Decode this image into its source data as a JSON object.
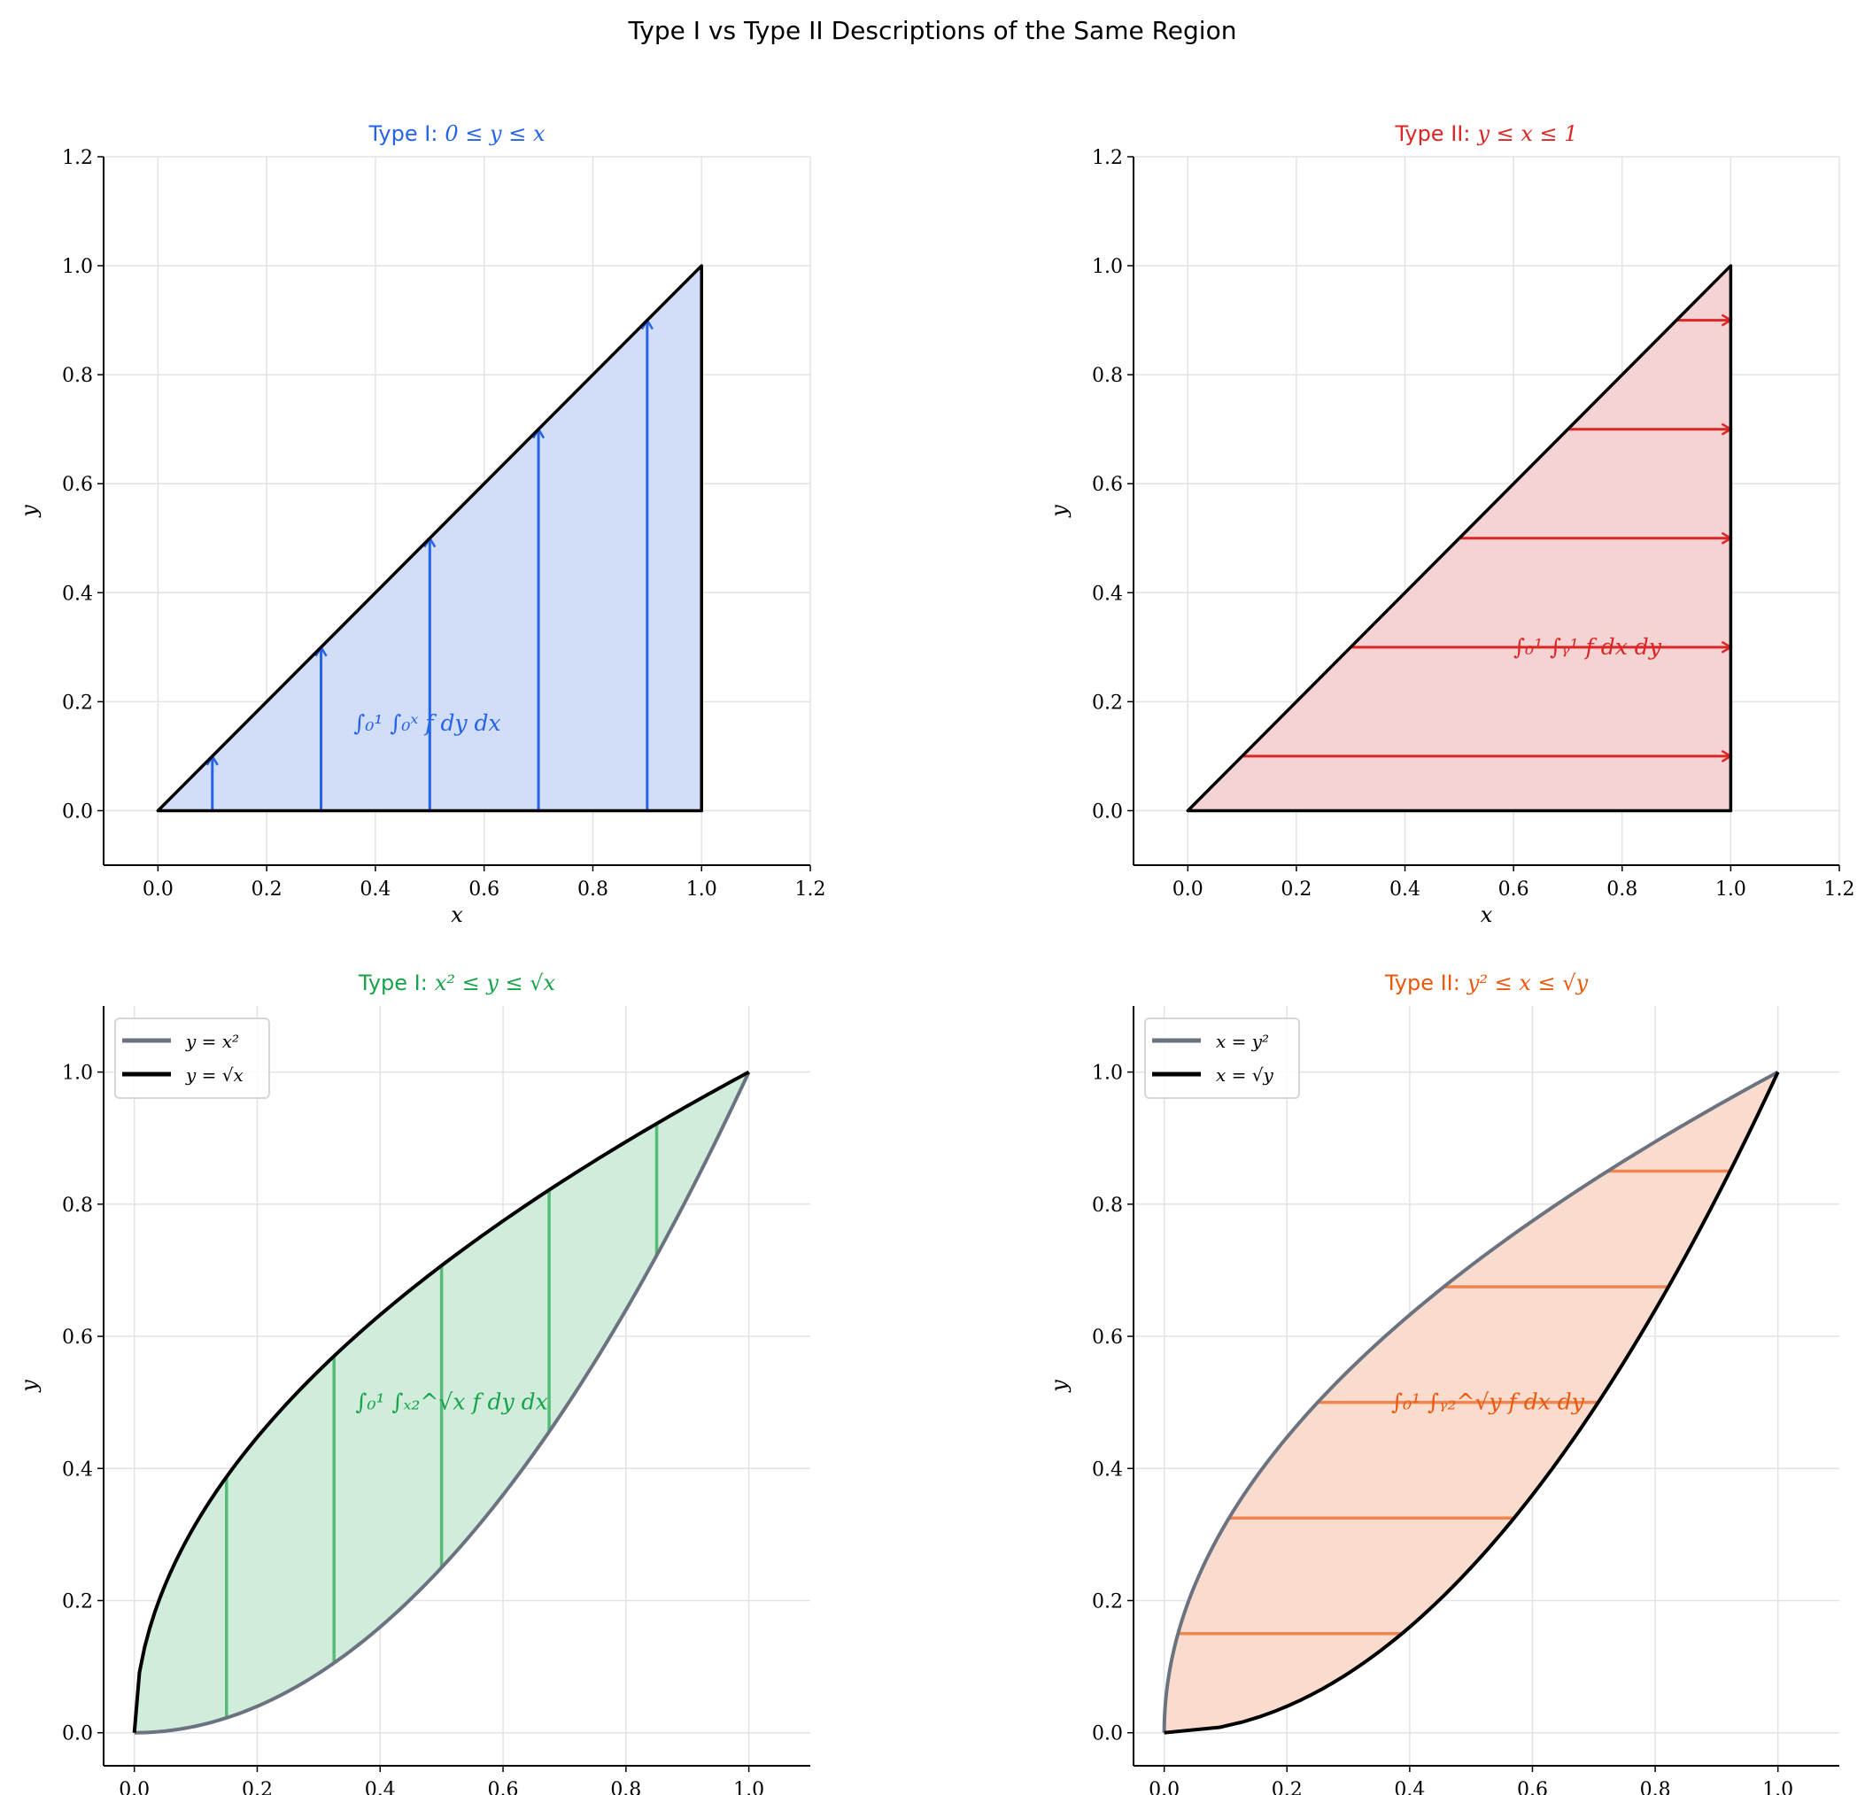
{
  "title": "Type I vs Type II Descriptions of the Same Region",
  "chart_data": [
    {
      "type": "area",
      "panel": "top-left",
      "title_prefix": "Type I:",
      "title_math": "0 ≤ y ≤ x",
      "color": "#2563eb",
      "fill": "#d2ddf8",
      "xlabel": "x",
      "ylabel": "y",
      "xlim": [
        -0.1,
        1.2
      ],
      "ylim": [
        -0.1,
        1.2
      ],
      "xticks": [
        "0.0",
        "0.2",
        "0.4",
        "0.6",
        "0.8",
        "1.0",
        "1.2"
      ],
      "yticks": [
        "0.0",
        "0.2",
        "0.4",
        "0.6",
        "0.8",
        "1.0",
        "1.2"
      ],
      "grid": true,
      "region": {
        "vertices": [
          [
            0,
            0
          ],
          [
            1,
            0
          ],
          [
            1,
            1
          ]
        ]
      },
      "slices": {
        "direction": "vertical",
        "arrows": true,
        "x": [
          0.1,
          0.3,
          0.5,
          0.7,
          0.9
        ],
        "from": "y = 0",
        "to": "y = x"
      },
      "annotation": {
        "text": "∫₀¹ ∫₀ˣ f dy dx",
        "x": 0.36,
        "y": 0.16
      }
    },
    {
      "type": "area",
      "panel": "top-right",
      "title_prefix": "Type II:",
      "title_math": "y ≤ x ≤ 1",
      "color": "#dc2626",
      "fill": "#f5d3d3",
      "xlabel": "x",
      "ylabel": "y",
      "xlim": [
        -0.1,
        1.2
      ],
      "ylim": [
        -0.1,
        1.2
      ],
      "xticks": [
        "0.0",
        "0.2",
        "0.4",
        "0.6",
        "0.8",
        "1.0",
        "1.2"
      ],
      "yticks": [
        "0.0",
        "0.2",
        "0.4",
        "0.6",
        "0.8",
        "1.0",
        "1.2"
      ],
      "grid": true,
      "region": {
        "vertices": [
          [
            0,
            0
          ],
          [
            1,
            0
          ],
          [
            1,
            1
          ]
        ]
      },
      "slices": {
        "direction": "horizontal",
        "arrows": true,
        "y": [
          0.1,
          0.3,
          0.5,
          0.7,
          0.9
        ],
        "from": "x = y",
        "to": "x = 1"
      },
      "annotation": {
        "text": "∫₀¹ ∫ᵧ¹ f dx dy",
        "x": 0.6,
        "y": 0.3
      }
    },
    {
      "type": "area",
      "panel": "bottom-left",
      "title_prefix": "Type I:",
      "title_math": "x² ≤ y ≤ √x",
      "color": "#16a34a",
      "line_color": "#55bb77",
      "fill": "#d0ecdb",
      "xlabel": "x",
      "ylabel": "y",
      "xlim": [
        -0.05,
        1.1
      ],
      "ylim": [
        -0.05,
        1.1
      ],
      "xticks": [
        "0.0",
        "0.2",
        "0.4",
        "0.6",
        "0.8",
        "1.0"
      ],
      "yticks": [
        "0.0",
        "0.2",
        "0.4",
        "0.6",
        "0.8",
        "1.0"
      ],
      "grid": true,
      "series": [
        {
          "name": "y = x²",
          "color": "#6b7280",
          "curve": "y=x^2"
        },
        {
          "name": "y = √x",
          "color": "#000000",
          "curve": "y=sqrt(x)"
        }
      ],
      "legend": "top-left",
      "slices": {
        "direction": "vertical",
        "arrows": false,
        "x": [
          0.15,
          0.325,
          0.5,
          0.675,
          0.85
        ],
        "from": "y = x²",
        "to": "y = √x"
      },
      "annotation": {
        "text": "∫₀¹ ∫ₓ₂^√x f dy dx",
        "x": 0.36,
        "y": 0.5
      }
    },
    {
      "type": "area",
      "panel": "bottom-right",
      "title_prefix": "Type II:",
      "title_math": "y² ≤ x ≤ √y",
      "color": "#ea580c",
      "line_color": "#ef8550",
      "fill": "#f9dccd",
      "xlabel": "x",
      "ylabel": "y",
      "xlim": [
        -0.05,
        1.1
      ],
      "ylim": [
        -0.05,
        1.1
      ],
      "xticks": [
        "0.0",
        "0.2",
        "0.4",
        "0.6",
        "0.8",
        "1.0"
      ],
      "yticks": [
        "0.0",
        "0.2",
        "0.4",
        "0.6",
        "0.8",
        "1.0"
      ],
      "grid": true,
      "series": [
        {
          "name": "x = y²",
          "color": "#6b7280",
          "curve": "x=y^2"
        },
        {
          "name": "x = √y",
          "color": "#000000",
          "curve": "x=sqrt(y)"
        }
      ],
      "legend": "top-left",
      "slices": {
        "direction": "horizontal",
        "arrows": false,
        "y": [
          0.15,
          0.325,
          0.5,
          0.675,
          0.85
        ],
        "from": "x = y²",
        "to": "x = √y"
      },
      "annotation": {
        "text": "∫₀¹ ∫ᵧ₂^√y f dx dy",
        "x": 0.37,
        "y": 0.5
      }
    }
  ]
}
